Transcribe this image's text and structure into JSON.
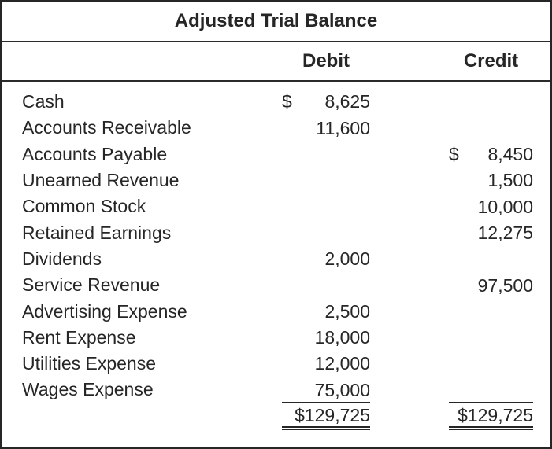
{
  "title": "Adjusted Trial Balance",
  "columns": {
    "debit": "Debit",
    "credit": "Credit"
  },
  "rows": [
    {
      "account": "Cash",
      "debit_symbol": "$",
      "debit": "8,625",
      "credit_symbol": "",
      "credit": ""
    },
    {
      "account": "Accounts Receivable",
      "debit_symbol": "",
      "debit": "11,600",
      "credit_symbol": "",
      "credit": ""
    },
    {
      "account": "Accounts Payable",
      "debit_symbol": "",
      "debit": "",
      "credit_symbol": "$",
      "credit": "8,450"
    },
    {
      "account": "Unearned Revenue",
      "debit_symbol": "",
      "debit": "",
      "credit_symbol": "",
      "credit": "1,500"
    },
    {
      "account": "Common Stock",
      "debit_symbol": "",
      "debit": "",
      "credit_symbol": "",
      "credit": "10,000"
    },
    {
      "account": "Retained Earnings",
      "debit_symbol": "",
      "debit": "",
      "credit_symbol": "",
      "credit": "12,275"
    },
    {
      "account": "Dividends",
      "debit_symbol": "",
      "debit": "2,000",
      "credit_symbol": "",
      "credit": ""
    },
    {
      "account": "Service Revenue",
      "debit_symbol": "",
      "debit": "",
      "credit_symbol": "",
      "credit": "97,500"
    },
    {
      "account": "Advertising Expense",
      "debit_symbol": "",
      "debit": "2,500",
      "credit_symbol": "",
      "credit": ""
    },
    {
      "account": "Rent Expense",
      "debit_symbol": "",
      "debit": "18,000",
      "credit_symbol": "",
      "credit": ""
    },
    {
      "account": "Utilities Expense",
      "debit_symbol": "",
      "debit": "12,000",
      "credit_symbol": "",
      "credit": ""
    },
    {
      "account": "Wages Expense",
      "debit_symbol": "",
      "debit": "75,000",
      "credit_symbol": "",
      "credit": ""
    }
  ],
  "totals": {
    "debit": "$129,725",
    "credit": "$129,725"
  },
  "colors": {
    "text": "#262626",
    "border": "#2b2b2b",
    "background": "#ffffff"
  }
}
